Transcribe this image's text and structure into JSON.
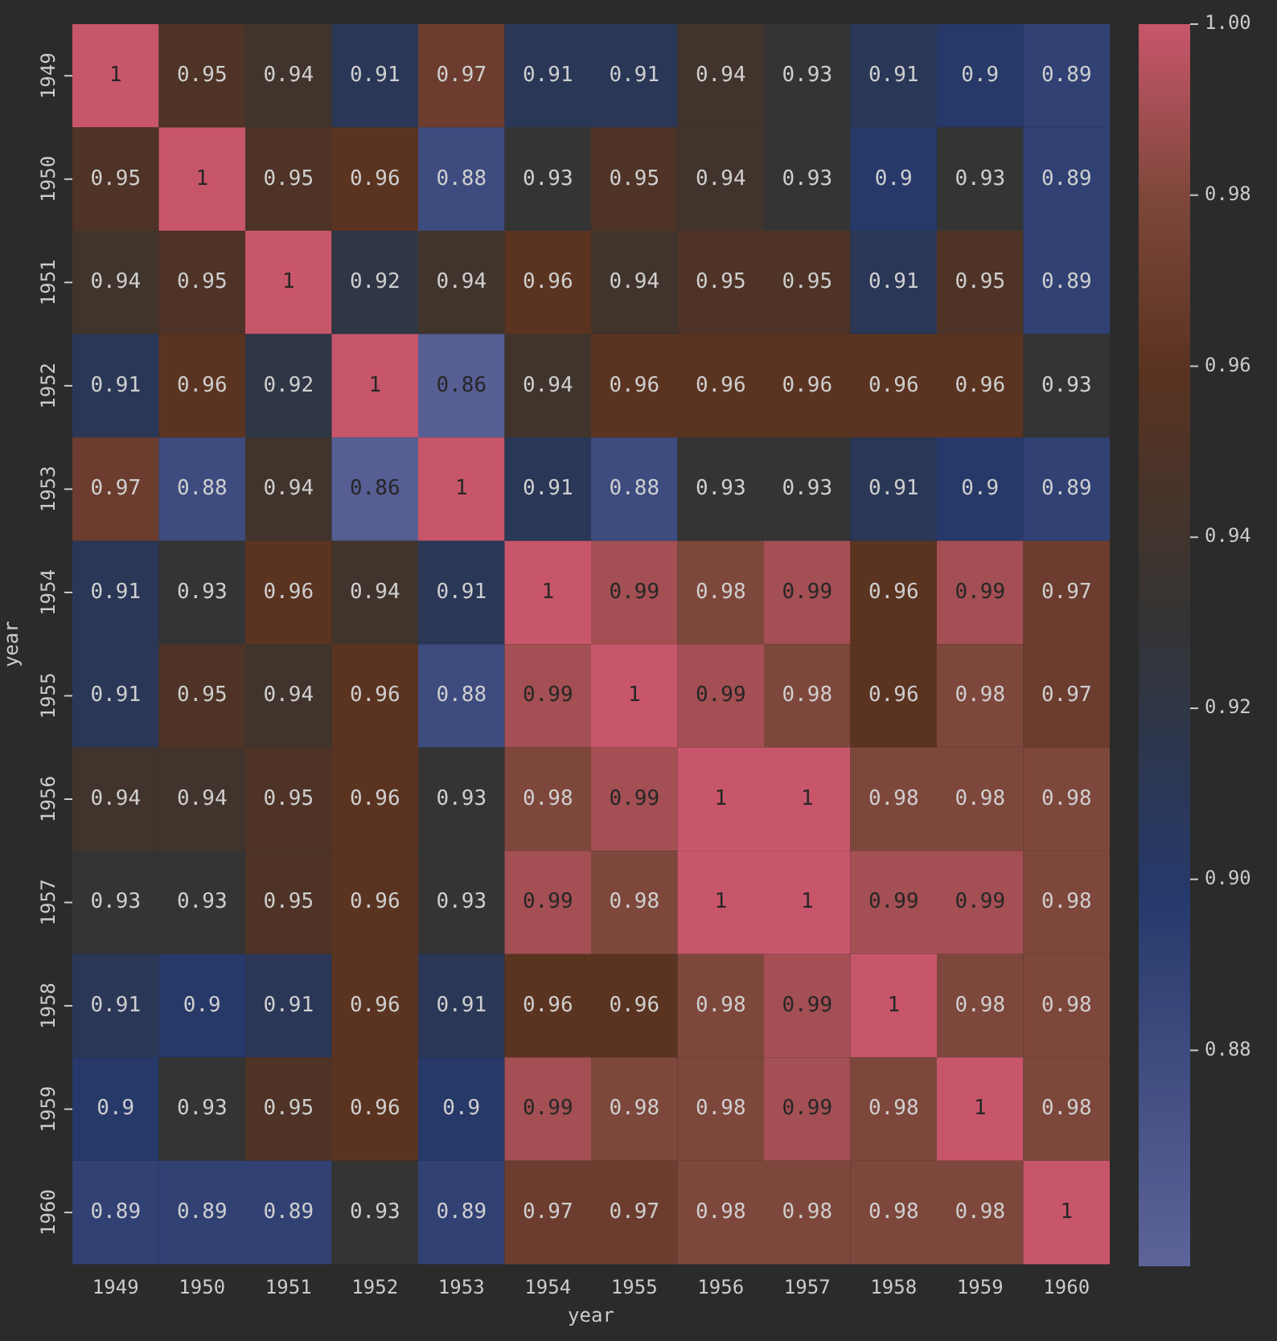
{
  "chart_data": {
    "type": "heatmap",
    "xlabel": "year",
    "ylabel": "year",
    "categories": [
      "1949",
      "1950",
      "1951",
      "1952",
      "1953",
      "1954",
      "1955",
      "1956",
      "1957",
      "1958",
      "1959",
      "1960"
    ],
    "y_categories": [
      "1949",
      "1950",
      "1951",
      "1952",
      "1953",
      "1954",
      "1955",
      "1956",
      "1957",
      "1958",
      "1959",
      "1960"
    ],
    "cells": [
      [
        1,
        0.95,
        0.94,
        0.91,
        0.97,
        0.91,
        0.91,
        0.94,
        0.93,
        0.91,
        0.9,
        0.89
      ],
      [
        0.95,
        1,
        0.95,
        0.96,
        0.88,
        0.93,
        0.95,
        0.94,
        0.93,
        0.9,
        0.93,
        0.89
      ],
      [
        0.94,
        0.95,
        1,
        0.92,
        0.94,
        0.96,
        0.94,
        0.95,
        0.95,
        0.91,
        0.95,
        0.89
      ],
      [
        0.91,
        0.96,
        0.92,
        1,
        0.86,
        0.94,
        0.96,
        0.96,
        0.96,
        0.96,
        0.96,
        0.93
      ],
      [
        0.97,
        0.88,
        0.94,
        0.86,
        1,
        0.91,
        0.88,
        0.93,
        0.93,
        0.91,
        0.9,
        0.89
      ],
      [
        0.91,
        0.93,
        0.96,
        0.94,
        0.91,
        1,
        0.99,
        0.98,
        0.99,
        0.96,
        0.99,
        0.97
      ],
      [
        0.91,
        0.95,
        0.94,
        0.96,
        0.88,
        0.99,
        1,
        0.99,
        0.98,
        0.96,
        0.98,
        0.97
      ],
      [
        0.94,
        0.94,
        0.95,
        0.96,
        0.93,
        0.98,
        0.99,
        1,
        1,
        0.98,
        0.98,
        0.98
      ],
      [
        0.93,
        0.93,
        0.95,
        0.96,
        0.93,
        0.99,
        0.98,
        1,
        1,
        0.99,
        0.99,
        0.98
      ],
      [
        0.91,
        0.9,
        0.91,
        0.96,
        0.91,
        0.96,
        0.96,
        0.98,
        0.99,
        1,
        0.98,
        0.98
      ],
      [
        0.9,
        0.93,
        0.95,
        0.96,
        0.9,
        0.99,
        0.98,
        0.98,
        0.99,
        0.98,
        1,
        0.98
      ],
      [
        0.89,
        0.89,
        0.89,
        0.93,
        0.89,
        0.97,
        0.97,
        0.98,
        0.98,
        0.98,
        0.98,
        1
      ]
    ],
    "data_labels": true,
    "clim": [
      0.855,
      1
    ],
    "cticks": [
      0.88,
      {
        "value": 0.9,
        "label": "0.90"
      },
      0.92,
      0.94,
      0.96,
      0.98,
      {
        "value": 1,
        "label": "1.00"
      }
    ]
  }
}
